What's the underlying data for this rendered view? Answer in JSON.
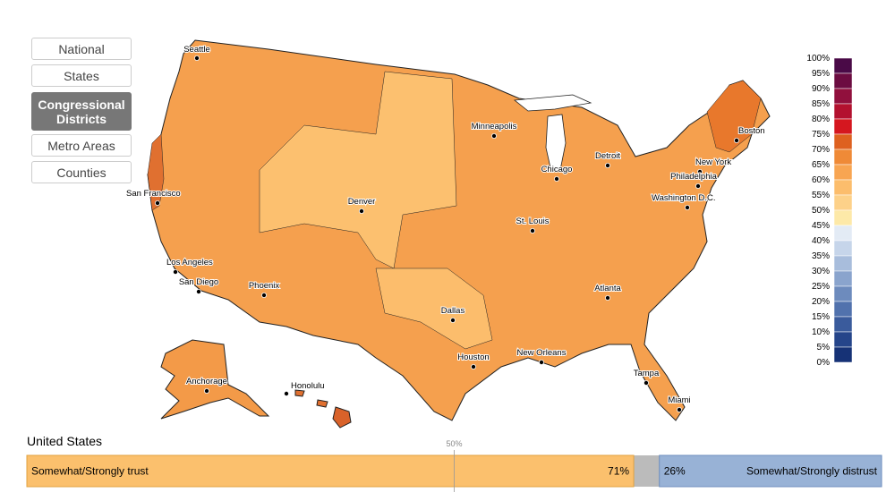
{
  "nav": {
    "buttons": [
      "National",
      "States",
      "Congressional Districts",
      "Metro Areas",
      "Counties"
    ],
    "active": 2
  },
  "map": {
    "cities": [
      "Seattle",
      "Boston",
      "Minneapolis",
      "Detroit",
      "Chicago",
      "New York",
      "Philadelphia",
      "Washington D.C.",
      "San Francisco",
      "Denver",
      "St. Louis",
      "Los Angeles",
      "San Diego",
      "Phoenix",
      "Atlanta",
      "Dallas",
      "Houston",
      "New Orleans",
      "Tampa",
      "Miami",
      "Anchorage",
      "Honolulu"
    ]
  },
  "legend": {
    "labels": [
      "100%",
      "95%",
      "90%",
      "85%",
      "80%",
      "75%",
      "70%",
      "65%",
      "60%",
      "55%",
      "50%",
      "45%",
      "40%",
      "35%",
      "30%",
      "25%",
      "20%",
      "15%",
      "10%",
      "5%",
      "0%"
    ],
    "colors": [
      "#4a0a47",
      "#6c0c41",
      "#91103d",
      "#b3112f",
      "#d5171f",
      "#de6120",
      "#ef8a37",
      "#f8a552",
      "#fcbd6c",
      "#fdd189",
      "#fde9a8",
      "#e3ebf5",
      "#c6d5ea",
      "#a8bddc",
      "#8aa4cd",
      "#6d8bbd",
      "#5172ad",
      "#3a5b9c",
      "#25458a",
      "#163276"
    ]
  },
  "summary": {
    "title": "United States",
    "xlim": [
      0,
      100
    ],
    "midpoint": {
      "value": 50,
      "label": "50%"
    },
    "trust": {
      "label": "Somewhat/Strongly trust",
      "value": 71,
      "value_label": "71%",
      "color": "#fbc06d"
    },
    "distrust": {
      "label": "Somewhat/Strongly distrust",
      "value": 26,
      "value_label": "26%",
      "color": "#98b2d6"
    }
  }
}
